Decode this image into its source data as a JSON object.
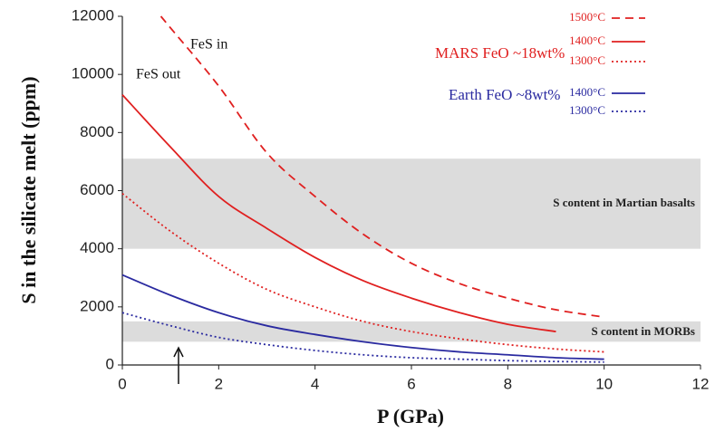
{
  "chart_data": {
    "type": "line",
    "xlabel": "P (GPa)",
    "ylabel": "S in the silicate melt (ppm)",
    "xlim": [
      0,
      12
    ],
    "xticks": [
      0,
      2,
      4,
      6,
      8,
      10,
      12
    ],
    "ylim": [
      0,
      12000
    ],
    "yticks": [
      0,
      2000,
      4000,
      6000,
      8000,
      10000,
      12000
    ],
    "grid": false,
    "legend_groups": [
      {
        "label": "MARS FeO ~18wt%",
        "color": "#e02020"
      },
      {
        "label": "Earth FeO ~8wt%",
        "color": "#2a2aa0"
      }
    ],
    "series": [
      {
        "name": "1500°C",
        "color": "#e02020",
        "dash": "dashed",
        "x": [
          0.8,
          1,
          2,
          3,
          4,
          5,
          6,
          7,
          8,
          9,
          10
        ],
        "values": [
          12000,
          11600,
          9600,
          7300,
          5800,
          4500,
          3500,
          2800,
          2300,
          1900,
          1650
        ]
      },
      {
        "name": "1400°C",
        "color": "#e02020",
        "dash": "solid",
        "x": [
          0,
          1,
          2,
          3,
          4,
          5,
          6,
          7,
          8,
          9
        ],
        "values": [
          9300,
          7500,
          5800,
          4700,
          3700,
          2900,
          2300,
          1800,
          1400,
          1150
        ]
      },
      {
        "name": "1300°C",
        "color": "#e02020",
        "dash": "dotted",
        "x": [
          0,
          1,
          2,
          3,
          4,
          5,
          6,
          7,
          8,
          9,
          10
        ],
        "values": [
          5900,
          4600,
          3500,
          2600,
          2000,
          1500,
          1150,
          900,
          700,
          550,
          450
        ]
      },
      {
        "name": "1400°C",
        "color": "#2a2aa0",
        "dash": "solid",
        "x": [
          0,
          1,
          2,
          3,
          4,
          5,
          6,
          7,
          8,
          9,
          10
        ],
        "values": [
          3100,
          2400,
          1800,
          1350,
          1050,
          800,
          600,
          450,
          350,
          250,
          200
        ]
      },
      {
        "name": "1300°C",
        "color": "#2a2aa0",
        "dash": "dotted",
        "x": [
          0,
          1,
          2,
          3,
          4,
          5,
          6,
          7,
          8,
          9,
          10
        ],
        "values": [
          1800,
          1350,
          950,
          700,
          500,
          350,
          250,
          200,
          150,
          120,
          100
        ]
      }
    ],
    "bands": [
      {
        "label": "S content in Martian basalts",
        "range": [
          4000,
          7100
        ]
      },
      {
        "label": "S content in MORBs",
        "range": [
          800,
          1500
        ]
      }
    ],
    "annotations": [
      "FeS in",
      "FeS out"
    ]
  }
}
